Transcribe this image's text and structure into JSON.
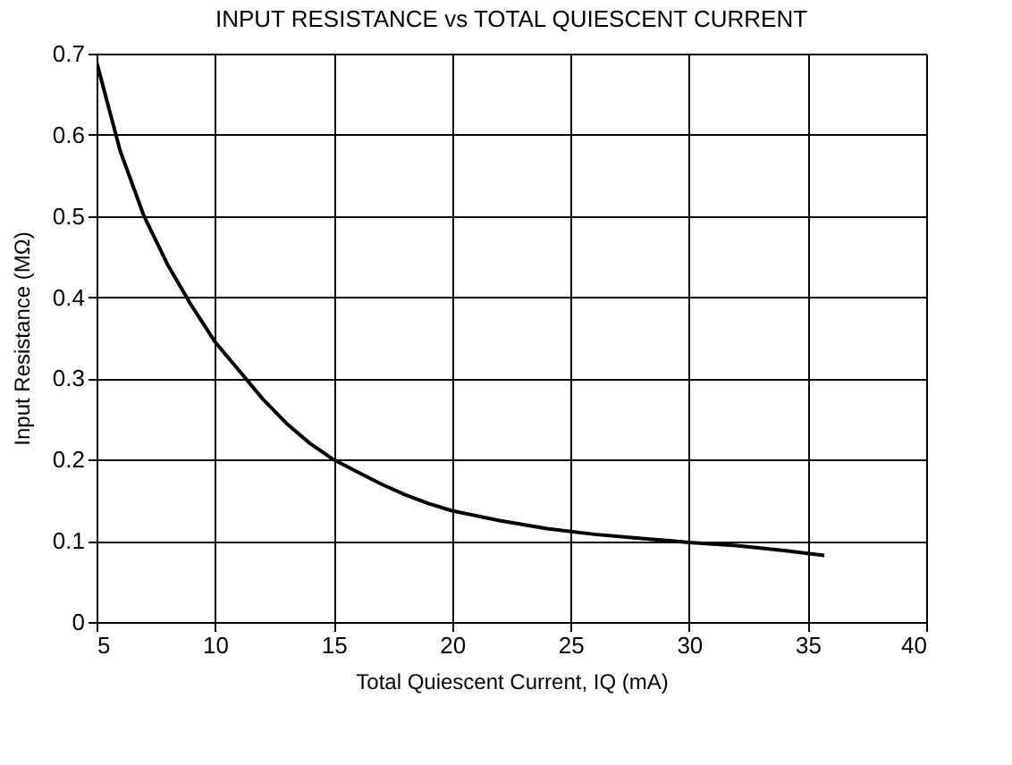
{
  "chart_data": {
    "type": "line",
    "title": "INPUT RESISTANCE vs TOTAL QUIESCENT CURRENT",
    "xlabel": "Total Quiescent Current, IQ (mA)",
    "ylabel": "Input Resistance (MΩ)",
    "x": [
      5,
      6,
      7,
      8,
      9,
      10,
      11,
      12,
      13,
      14,
      15,
      16,
      17,
      18,
      19,
      20,
      22,
      24,
      26,
      28,
      30,
      32,
      34,
      35.7
    ],
    "series": [
      {
        "color": "#000000",
        "values": [
          0.69,
          0.58,
          0.5,
          0.44,
          0.39,
          0.345,
          0.31,
          0.275,
          0.245,
          0.22,
          0.2,
          0.185,
          0.17,
          0.157,
          0.146,
          0.137,
          0.125,
          0.115,
          0.108,
          0.103,
          0.098,
          0.094,
          0.088,
          0.082
        ]
      }
    ],
    "xlim": [
      5,
      40
    ],
    "xticks": [
      5,
      10,
      15,
      20,
      25,
      30,
      35,
      40
    ],
    "ylim": [
      0,
      0.7
    ],
    "yticks": [
      0,
      0.1,
      0.2,
      0.3,
      0.4,
      0.5,
      0.6,
      0.7
    ],
    "grid": true,
    "line_style": "solid"
  }
}
